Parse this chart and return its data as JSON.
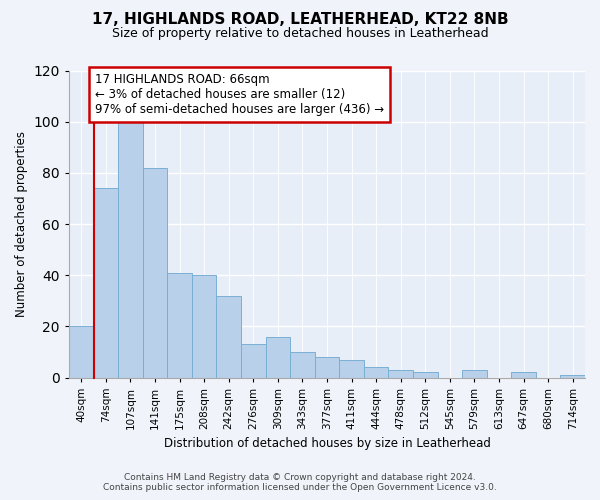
{
  "title": "17, HIGHLANDS ROAD, LEATHERHEAD, KT22 8NB",
  "subtitle": "Size of property relative to detached houses in Leatherhead",
  "xlabel": "Distribution of detached houses by size in Leatherhead",
  "ylabel": "Number of detached properties",
  "bin_labels": [
    "40sqm",
    "74sqm",
    "107sqm",
    "141sqm",
    "175sqm",
    "208sqm",
    "242sqm",
    "276sqm",
    "309sqm",
    "343sqm",
    "377sqm",
    "411sqm",
    "444sqm",
    "478sqm",
    "512sqm",
    "545sqm",
    "579sqm",
    "613sqm",
    "647sqm",
    "680sqm",
    "714sqm"
  ],
  "bar_values": [
    20,
    74,
    101,
    82,
    41,
    40,
    32,
    13,
    16,
    10,
    8,
    7,
    4,
    3,
    2,
    0,
    3,
    0,
    2,
    0,
    1
  ],
  "bar_color": "#b8d0ea",
  "bar_edge_color": "#7aafd4",
  "subject_line_color": "#cc0000",
  "annotation_title": "17 HIGHLANDS ROAD: 66sqm",
  "annotation_line1": "← 3% of detached houses are smaller (12)",
  "annotation_line2": "97% of semi-detached houses are larger (436) →",
  "annotation_box_color": "#cc0000",
  "ylim": [
    0,
    120
  ],
  "yticks": [
    0,
    20,
    40,
    60,
    80,
    100,
    120
  ],
  "footer1": "Contains HM Land Registry data © Crown copyright and database right 2024.",
  "footer2": "Contains public sector information licensed under the Open Government Licence v3.0.",
  "bg_color": "#f0f4fa",
  "plot_bg_color": "#e8eef8"
}
